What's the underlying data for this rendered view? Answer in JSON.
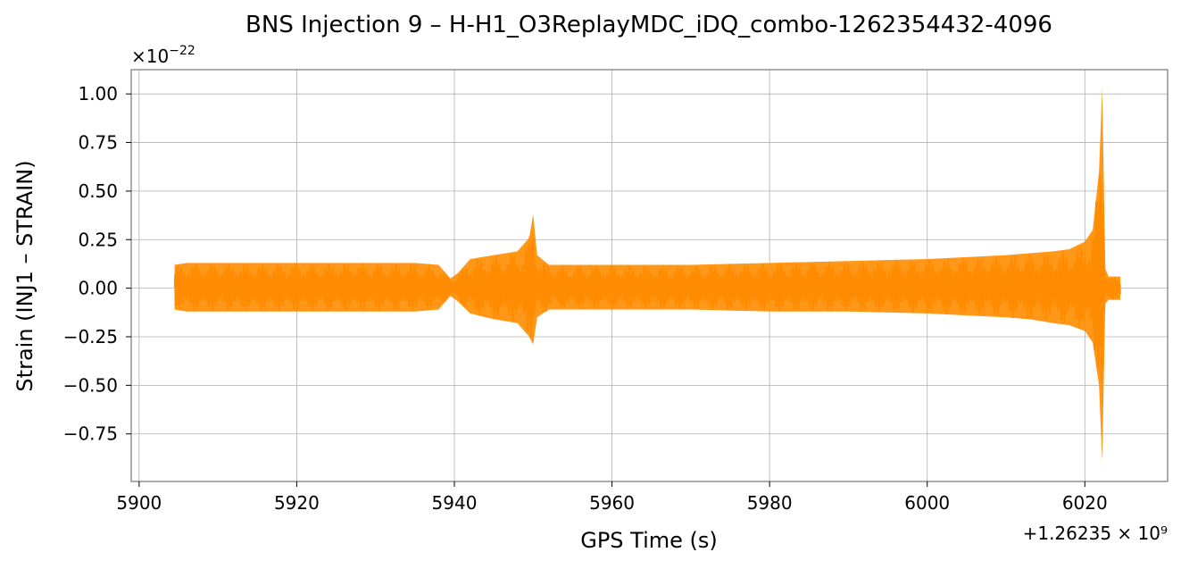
{
  "chart_data": {
    "type": "line",
    "title": "BNS Injection 9 – H-H1_O3ReplayMDC_iDQ_combo-1262354432-4096",
    "xlabel": "GPS Time (s)",
    "ylabel": "Strain (INJ1 – STRAIN)",
    "x_offset_label": "+1.26235 × 10⁹",
    "y_scale_base": "×10",
    "y_scale_exponent": "−22",
    "xlim": [
      5899.0,
      6030.5
    ],
    "ylim": [
      -0.995,
      1.125
    ],
    "x_ticks": [
      5900,
      5920,
      5940,
      5960,
      5980,
      6000,
      6020
    ],
    "x_tick_labels": [
      "5900",
      "5920",
      "5940",
      "5960",
      "5980",
      "6000",
      "6020"
    ],
    "y_ticks": [
      1.0,
      0.75,
      0.5,
      0.25,
      0.0,
      -0.25,
      -0.5,
      -0.75
    ],
    "y_tick_labels": [
      "1.00",
      "0.75",
      "0.50",
      "0.25",
      "0.00",
      "−0.25",
      "−0.50",
      "−0.75"
    ],
    "grid": true,
    "legend": false,
    "series": [
      {
        "color": "#ff8c00",
        "envelope": {
          "x": [
            5904.5,
            5906,
            5910,
            5920,
            5930,
            5935,
            5938,
            5939.5,
            5940.5,
            5942,
            5945,
            5948,
            5949.5,
            5950.0,
            5950.5,
            5952,
            5960,
            5970,
            5980,
            5990,
            6000,
            6005,
            6010,
            6013,
            6016,
            6018,
            6020,
            6021,
            6021.8,
            6022.2,
            6022.6,
            6023,
            6024.5
          ],
          "upper": [
            0.12,
            0.13,
            0.13,
            0.13,
            0.13,
            0.13,
            0.12,
            0.05,
            0.08,
            0.15,
            0.17,
            0.19,
            0.26,
            0.38,
            0.17,
            0.12,
            0.12,
            0.12,
            0.13,
            0.14,
            0.15,
            0.16,
            0.17,
            0.18,
            0.19,
            0.2,
            0.24,
            0.3,
            0.6,
            1.03,
            0.1,
            0.06,
            0.06
          ],
          "lower": [
            -0.11,
            -0.12,
            -0.12,
            -0.12,
            -0.12,
            -0.12,
            -0.11,
            -0.04,
            -0.07,
            -0.13,
            -0.16,
            -0.18,
            -0.25,
            -0.29,
            -0.15,
            -0.11,
            -0.11,
            -0.11,
            -0.12,
            -0.12,
            -0.13,
            -0.14,
            -0.15,
            -0.16,
            -0.18,
            -0.19,
            -0.22,
            -0.28,
            -0.5,
            -0.89,
            -0.08,
            -0.06,
            -0.06
          ]
        }
      }
    ]
  }
}
